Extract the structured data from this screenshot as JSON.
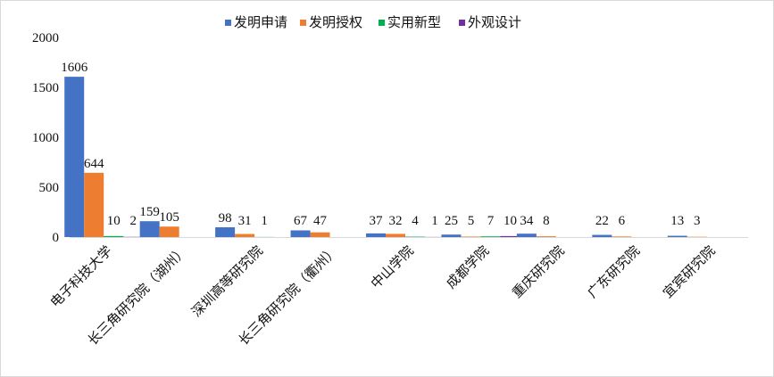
{
  "chart_data": {
    "type": "bar",
    "categories": [
      "电子科技大学",
      "长三角研究院（湖州）",
      "深圳高等研究院",
      "长三角研究院（衢州）",
      "中山学院",
      "成都学院",
      "重庆研究院",
      "广东研究院",
      "宜宾研究院"
    ],
    "series": [
      {
        "name": "发明申请",
        "color": "#4472C4",
        "values": [
          1606,
          159,
          98,
          67,
          37,
          25,
          34,
          22,
          13
        ],
        "labels": [
          "1606",
          "159",
          "98",
          "67",
          "37",
          "25",
          "34",
          "22",
          "13"
        ]
      },
      {
        "name": "发明授权",
        "color": "#ED7D31",
        "values": [
          644,
          105,
          31,
          47,
          32,
          5,
          8,
          6,
          3
        ],
        "labels": [
          "644",
          "105",
          "31",
          "47",
          "32",
          "5",
          "8",
          "6",
          "3"
        ]
      },
      {
        "name": "实用新型",
        "color": "#00B050",
        "values": [
          10,
          0,
          1,
          0,
          4,
          7,
          null,
          null,
          null
        ],
        "labels": [
          "10",
          "",
          "1",
          "",
          "4",
          "7",
          "",
          "",
          ""
        ]
      },
      {
        "name": "外观设计",
        "color": "#7030A0",
        "values": [
          2,
          null,
          null,
          null,
          1,
          10,
          null,
          null,
          null
        ],
        "labels": [
          "2",
          "",
          "",
          "",
          "1",
          "10",
          "",
          "",
          ""
        ]
      }
    ],
    "yticks": [
      0,
      500,
      1000,
      1500,
      2000
    ],
    "ylim": [
      0,
      2000
    ],
    "grid": false,
    "legend": "top-center"
  }
}
